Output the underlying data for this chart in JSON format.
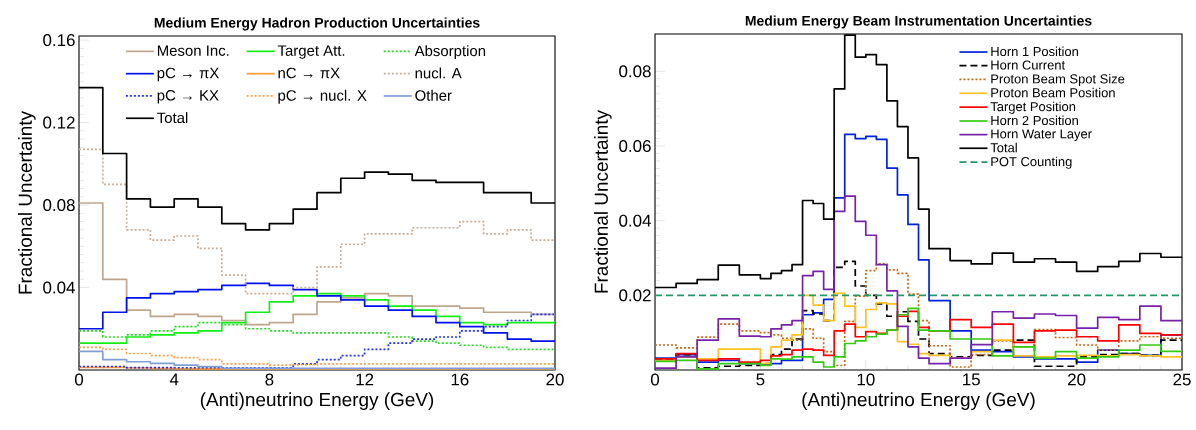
{
  "chart_data": [
    {
      "type": "histogram",
      "title": "Medium Energy Hadron Production Uncertainties",
      "xlabel": "(Anti)neutrino Energy (GeV)",
      "ylabel": "Fractional Uncertainty",
      "bins": [
        0,
        1,
        2,
        3,
        4,
        5,
        6,
        7,
        8,
        9,
        10,
        11,
        12,
        13,
        14,
        15,
        16,
        17,
        18,
        19,
        20
      ],
      "xlim": [
        0,
        20
      ],
      "ylim": [
        0,
        0.162
      ],
      "xticks": [
        0,
        4,
        8,
        12,
        16,
        20
      ],
      "yticks": [
        0.04,
        0.08,
        0.12,
        0.16
      ],
      "legend": "top",
      "series": [
        {
          "name": "Meson Inc.",
          "color": "#bfa58c",
          "line_style": "solid",
          "values": [
            0.081,
            0.044,
            0.029,
            0.026,
            0.027,
            0.026,
            0.024,
            0.022,
            0.023,
            0.027,
            0.033,
            0.035,
            0.037,
            0.036,
            0.031,
            0.031,
            0.03,
            0.028,
            0.028,
            0.027
          ]
        },
        {
          "name": "Target Att.",
          "color": "#11ee11",
          "line_style": "solid",
          "values": [
            0.013,
            0.013,
            0.016,
            0.017,
            0.018,
            0.019,
            0.023,
            0.028,
            0.033,
            0.036,
            0.037,
            0.036,
            0.034,
            0.031,
            0.029,
            0.026,
            0.023,
            0.022,
            0.023,
            0.023
          ]
        },
        {
          "name": "Absorption",
          "color": "#22dd22",
          "line_style": "dotted",
          "values": [
            0.019,
            0.016,
            0.017,
            0.019,
            0.021,
            0.023,
            0.022,
            0.02,
            0.019,
            0.018,
            0.018,
            0.018,
            0.018,
            0.016,
            0.014,
            0.013,
            0.012,
            0.011,
            0.01,
            0.01
          ]
        },
        {
          "name": "pC → πX",
          "color": "#0011ee",
          "line_style": "solid",
          "values": [
            0.02,
            0.028,
            0.035,
            0.037,
            0.038,
            0.039,
            0.041,
            0.042,
            0.041,
            0.039,
            0.036,
            0.034,
            0.031,
            0.029,
            0.026,
            0.023,
            0.021,
            0.018,
            0.015,
            0.014
          ]
        },
        {
          "name": "nC → πX",
          "color": "#ff9933",
          "line_style": "solid",
          "values": [
            0.0013,
            0.0013,
            0.001,
            0.0008,
            0.0006,
            0.0005,
            0.0005,
            0.0005,
            0.0005,
            0.0005,
            0.0005,
            0.0005,
            0.0005,
            0.0005,
            0.0005,
            0.0005,
            0.0005,
            0.0005,
            0.0005,
            0.0005
          ]
        },
        {
          "name": "nucl. A",
          "color": "#c8ae98",
          "line_style": "dotted",
          "values": [
            0.107,
            0.09,
            0.068,
            0.063,
            0.065,
            0.059,
            0.046,
            0.037,
            0.037,
            0.04,
            0.05,
            0.061,
            0.066,
            0.066,
            0.069,
            0.069,
            0.072,
            0.066,
            0.068,
            0.063
          ]
        },
        {
          "name": "pC → KX",
          "color": "#2233ff",
          "line_style": "dotted",
          "values": [
            0.0017,
            0.0017,
            0.0012,
            0.0012,
            0.0011,
            0.0011,
            0.0011,
            0.0011,
            0.0011,
            0.003,
            0.005,
            0.007,
            0.01,
            0.013,
            0.015,
            0.016,
            0.019,
            0.021,
            0.024,
            0.027
          ]
        },
        {
          "name": "pC → nucl. X",
          "color": "#ffa347",
          "line_style": "dotted",
          "values": [
            0.011,
            0.01,
            0.008,
            0.007,
            0.006,
            0.005,
            0.003,
            0.003,
            0.0024,
            0.0026,
            0.003,
            0.003,
            0.003,
            0.003,
            0.003,
            0.003,
            0.003,
            0.003,
            0.003,
            0.003
          ]
        },
        {
          "name": "Other",
          "color": "#7f9fd6",
          "line_style": "solid",
          "values": [
            0.009,
            0.005,
            0.004,
            0.0032,
            0.0024,
            0.0016,
            0.0008,
            0.0008,
            0.0008,
            0.0008,
            0.0008,
            0.0008,
            0.0008,
            0.0008,
            0.0008,
            0.0008,
            0.0008,
            0.0008,
            0.0008,
            0.0008
          ]
        },
        {
          "name": "Total",
          "color": "#000000",
          "line_style": "solid",
          "values": [
            0.137,
            0.105,
            0.083,
            0.079,
            0.083,
            0.079,
            0.071,
            0.068,
            0.071,
            0.078,
            0.086,
            0.093,
            0.096,
            0.095,
            0.092,
            0.091,
            0.091,
            0.086,
            0.086,
            0.081
          ]
        }
      ]
    },
    {
      "type": "histogram",
      "title": "Medium Energy Beam Instrumentation Uncertainties",
      "xlabel": "(Anti)neutrino Energy (GeV)",
      "ylabel": "Fractional Uncertainty",
      "bins": [
        0,
        1,
        2,
        3,
        4,
        5,
        5.5,
        6,
        6.5,
        7,
        7.5,
        8,
        8.5,
        9,
        9.5,
        10,
        10.5,
        11,
        11.5,
        12,
        12.5,
        13,
        14,
        15,
        16,
        17,
        18,
        19,
        20,
        21,
        22,
        23,
        24,
        25
      ],
      "xlim": [
        0,
        25
      ],
      "ylim": [
        0,
        0.09
      ],
      "xticks": [
        0,
        5,
        10,
        15,
        20,
        25
      ],
      "yticks": [
        0.02,
        0.04,
        0.06,
        0.08
      ],
      "legend": "top right",
      "ref_lines": [
        {
          "axis": "y",
          "value": 0.02,
          "label": "POT Counting",
          "color": "#229966",
          "line_style": "dashed"
        }
      ],
      "series": [
        {
          "name": "Horn 1 Position",
          "color": "#0022dd",
          "line_style": "solid",
          "values": [
            0.0032,
            0.0041,
            0.0021,
            0.0026,
            0.0017,
            0.0014,
            0.0017,
            0.0026,
            0.0026,
            0.0148,
            0.0153,
            0.0189,
            0.0461,
            0.0631,
            0.062,
            0.0626,
            0.0618,
            0.0541,
            0.0469,
            0.039,
            0.0295,
            0.0186,
            0.0105,
            0.0053,
            0.0049,
            0.0035,
            0.003,
            0.003,
            0.0021,
            0.0053,
            0.0044,
            0.0039,
            0.0094
          ]
        },
        {
          "name": "Horn Current",
          "color": "#000000",
          "line_style": "dashed",
          "values": [
            0.0029,
            0.0041,
            0.0006,
            0.001,
            0.0012,
            0.0017,
            0.0041,
            0.0056,
            0.0083,
            0.0159,
            0.015,
            0.0132,
            0.0275,
            0.0291,
            0.0225,
            0.02,
            0.0177,
            0.0144,
            0.0156,
            0.013,
            0.0083,
            0.0044,
            0.0035,
            0.0039,
            0.0053,
            0.008,
            0.001,
            0.001,
            0.0035,
            0.0041,
            0.0044,
            0.0039,
            0.008
          ]
        },
        {
          "name": "Proton Beam Spot Size",
          "color": "#cc6611",
          "line_style": "dotted",
          "values": [
            0.0067,
            0.0059,
            0.0088,
            0.0123,
            0.0105,
            0.01,
            0.0094,
            0.0085,
            0.008,
            0.011,
            0.0085,
            0.0049,
            0.0012,
            0.013,
            0.0198,
            0.0266,
            0.0284,
            0.0268,
            0.0259,
            0.0203,
            0.0132,
            0.0065,
            0.0008,
            0.0041,
            0.0078,
            0.0062,
            0.0108,
            0.0087,
            0.0067,
            0.0053,
            0.0078,
            0.0089,
            0.0085
          ]
        },
        {
          "name": "Proton Beam Position",
          "color": "#ffc125",
          "line_style": "solid",
          "values": [
            0.0026,
            0.0035,
            0.003,
            0.0056,
            0.0056,
            0.0017,
            0.0062,
            0.008,
            0.0094,
            0.02,
            0.0174,
            0.0132,
            0.0205,
            0.0171,
            0.0114,
            0.0162,
            0.018,
            0.0177,
            0.0076,
            0.0069,
            0.0044,
            0.0039,
            0.0032,
            0.0049,
            0.008,
            0.0038,
            0.0035,
            0.0038,
            0.0039,
            0.0038,
            0.0041,
            0.0038,
            0.0035
          ]
        },
        {
          "name": "Target Position",
          "color": "#ff0000",
          "line_style": "solid",
          "values": [
            0.003,
            0.0044,
            0.0026,
            0.003,
            0.0021,
            0.0026,
            0.0038,
            0.0041,
            0.0053,
            0.0056,
            0.0053,
            0.0039,
            0.0105,
            0.0123,
            0.0089,
            0.0103,
            0.0098,
            0.0107,
            0.0144,
            0.0157,
            0.0114,
            0.0105,
            0.0135,
            0.0114,
            0.0123,
            0.0074,
            0.0105,
            0.0107,
            0.0089,
            0.0078,
            0.0121,
            0.0098,
            0.0094
          ]
        },
        {
          "name": "Horn 2 Position",
          "color": "#33cc11",
          "line_style": "solid",
          "values": [
            0.0023,
            0.0026,
            0.0003,
            0.0017,
            0.0017,
            0.0012,
            0.003,
            0.0029,
            0.0035,
            0.0035,
            0.0021,
            0.0008,
            0.0035,
            0.0071,
            0.0078,
            0.0089,
            0.0096,
            0.0107,
            0.0148,
            0.0165,
            0.0107,
            0.0105,
            0.0083,
            0.0083,
            0.0038,
            0.0062,
            0.0032,
            0.0049,
            0.0032,
            0.0035,
            0.0053,
            0.0067,
            0.005
          ]
        },
        {
          "name": "Horn Water Layer",
          "color": "#7722aa",
          "line_style": "solid",
          "values": [
            0.0005,
            0.0035,
            0.008,
            0.0137,
            0.0091,
            0.0089,
            0.011,
            0.0121,
            0.0132,
            0.0253,
            0.0264,
            0.0216,
            0.0425,
            0.0466,
            0.0398,
            0.0361,
            0.0282,
            0.0212,
            0.0117,
            0.0062,
            0.0032,
            0.0017,
            0.0032,
            0.0068,
            0.0156,
            0.0139,
            0.015,
            0.0146,
            0.0112,
            0.0141,
            0.0135,
            0.0171,
            0.0132
          ]
        },
        {
          "name": "Total",
          "color": "#000000",
          "line_style": "solid",
          "values": [
            0.0221,
            0.0232,
            0.0242,
            0.0281,
            0.0255,
            0.0245,
            0.0259,
            0.0266,
            0.0282,
            0.0454,
            0.0446,
            0.0404,
            0.0753,
            0.0897,
            0.0838,
            0.0845,
            0.0818,
            0.0721,
            0.0652,
            0.0568,
            0.0431,
            0.0325,
            0.0293,
            0.0284,
            0.0313,
            0.0289,
            0.0298,
            0.0289,
            0.0264,
            0.0277,
            0.0291,
            0.0312,
            0.0302
          ]
        }
      ]
    }
  ]
}
